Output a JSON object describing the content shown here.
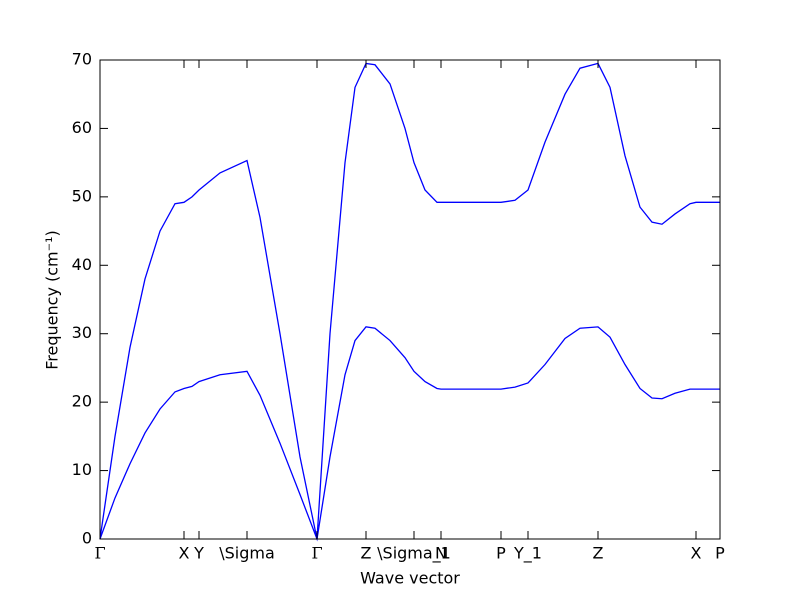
{
  "chart_data": {
    "type": "line",
    "xlabel": "Wave vector",
    "ylabel": "Frequency (cm⁻¹)",
    "x": [
      0,
      0.15,
      0.3,
      0.45,
      0.6,
      0.75,
      0.84,
      0.92,
      0.99,
      1.2,
      1.47,
      1.6,
      1.8,
      2.0,
      2.17,
      2.3,
      2.45,
      2.55,
      2.66,
      2.75,
      2.9,
      3.05,
      3.14,
      3.25,
      3.37,
      3.41,
      3.7,
      4.01,
      4.15,
      4.28,
      4.45,
      4.65,
      4.8,
      4.98,
      5.1,
      5.25,
      5.4,
      5.52,
      5.62,
      5.75,
      5.9,
      5.96,
      6.2
    ],
    "series": [
      {
        "color": "#0000ff",
        "values": [
          0,
          6,
          11,
          15.5,
          19,
          21.5,
          22,
          22.3,
          23,
          24,
          24.5,
          21,
          14,
          6.5,
          0,
          12,
          24,
          29,
          31,
          30.8,
          29,
          26.5,
          24.5,
          23,
          22,
          21.9,
          21.9,
          21.9,
          22.2,
          22.8,
          25.5,
          29.3,
          30.8,
          31,
          29.5,
          25.5,
          22,
          20.6,
          20.5,
          21.3,
          21.9,
          21.9,
          21.9
        ]
      },
      {
        "color": "#0000ff",
        "values": [
          0,
          15,
          28,
          38,
          45,
          49,
          49.2,
          50,
          51,
          53.5,
          55.3,
          47,
          30,
          12,
          0,
          30,
          55,
          66,
          69.5,
          69.3,
          66.5,
          60,
          55,
          51,
          49.2,
          49.2,
          49.2,
          49.2,
          49.5,
          51,
          58,
          65,
          68.8,
          69.5,
          66,
          56,
          48.5,
          46.3,
          46,
          47.5,
          49,
          49.2,
          49.2
        ]
      }
    ],
    "xlim": [
      0,
      6.2
    ],
    "ylim": [
      0,
      70
    ],
    "xticks": [
      {
        "value": 0,
        "label": "Γ"
      },
      {
        "value": 0.84,
        "label": "X"
      },
      {
        "value": 0.99,
        "label": "Y"
      },
      {
        "value": 1.47,
        "label": "\\Sigma"
      },
      {
        "value": 2.17,
        "label": "Γ"
      },
      {
        "value": 2.66,
        "label": "Z"
      },
      {
        "value": 3.14,
        "label": "\\Sigma_1"
      },
      {
        "value": 3.41,
        "label": "N"
      },
      {
        "value": 4.01,
        "label": "P"
      },
      {
        "value": 4.28,
        "label": "Y_1"
      },
      {
        "value": 4.98,
        "label": "Z"
      },
      {
        "value": 5.96,
        "label": "X"
      },
      {
        "value": 6.2,
        "label": "P"
      }
    ],
    "yticks": [
      0,
      10,
      20,
      30,
      40,
      50,
      60,
      70
    ]
  }
}
